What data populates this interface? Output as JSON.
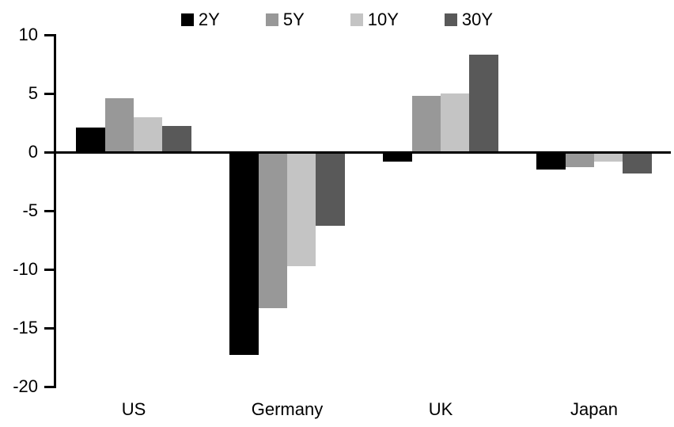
{
  "chart_data": {
    "type": "bar",
    "title": "",
    "xlabel": "",
    "ylabel": "",
    "categories": [
      "US",
      "Germany",
      "UK",
      "Japan"
    ],
    "series": [
      {
        "name": "2Y",
        "color": "#000000",
        "values": [
          2.1,
          -17.3,
          -0.8,
          -1.5
        ]
      },
      {
        "name": "5Y",
        "color": "#989898",
        "values": [
          4.6,
          -13.3,
          4.8,
          -1.3
        ]
      },
      {
        "name": "10Y",
        "color": "#c4c4c4",
        "values": [
          3.0,
          -9.7,
          5.0,
          -0.8
        ]
      },
      {
        "name": "30Y",
        "color": "#595959",
        "values": [
          2.2,
          -6.3,
          8.3,
          -1.8
        ]
      }
    ],
    "ylim": [
      -20,
      10
    ],
    "yticks": [
      10,
      5,
      0,
      -5,
      -10,
      -15,
      -20
    ],
    "legend_position": "top",
    "grid": false,
    "background": "#ffffff",
    "axis_color": "#000000"
  }
}
